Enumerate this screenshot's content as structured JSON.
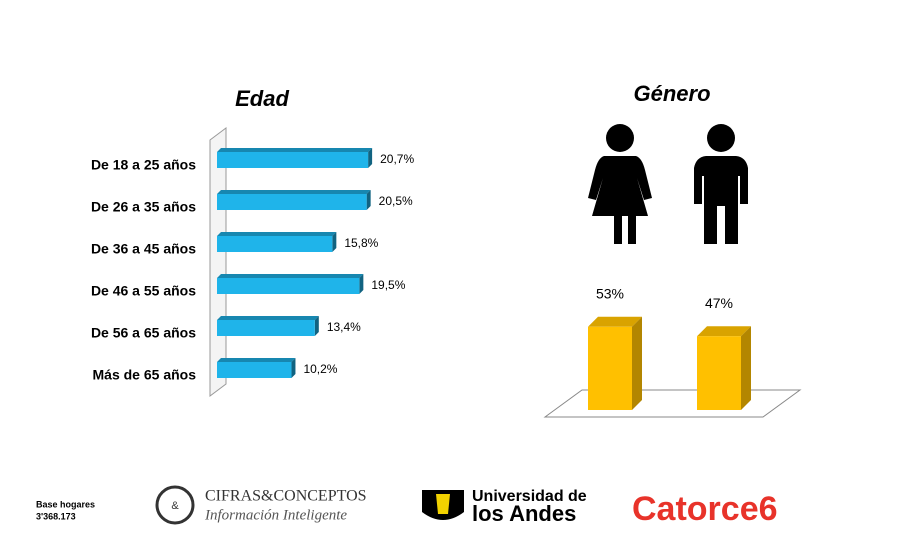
{
  "chart_data": [
    {
      "type": "hbar3d",
      "title": "Edad",
      "categories": [
        "De 18 a 25 años",
        "De 26 a 35 años",
        "De 36 a 45 años",
        "De 46 a 55 años",
        "De 56 a 65 años",
        "Más de 65 años"
      ],
      "values": [
        20.7,
        20.5,
        15.8,
        19.5,
        13.4,
        10.2
      ],
      "value_labels": [
        "20,7%",
        "20,5%",
        "15,8%",
        "19,5%",
        "13,4%",
        "10,2%"
      ],
      "color": "#1fb4ea"
    },
    {
      "type": "bar3d",
      "title": "Género",
      "values": [
        53,
        47
      ],
      "value_labels": [
        "53%",
        "47%"
      ],
      "color": "#ffc000"
    }
  ],
  "footer": {
    "base_label": "Base hogares",
    "base_value": "3'368.173",
    "logo1_name": "CIFRAS&CONCEPTOS",
    "logo1_tagline": "Información Inteligente",
    "logo2_line1": "Universidad de",
    "logo2_line2": "los Andes",
    "logo3": "Catorce6"
  }
}
